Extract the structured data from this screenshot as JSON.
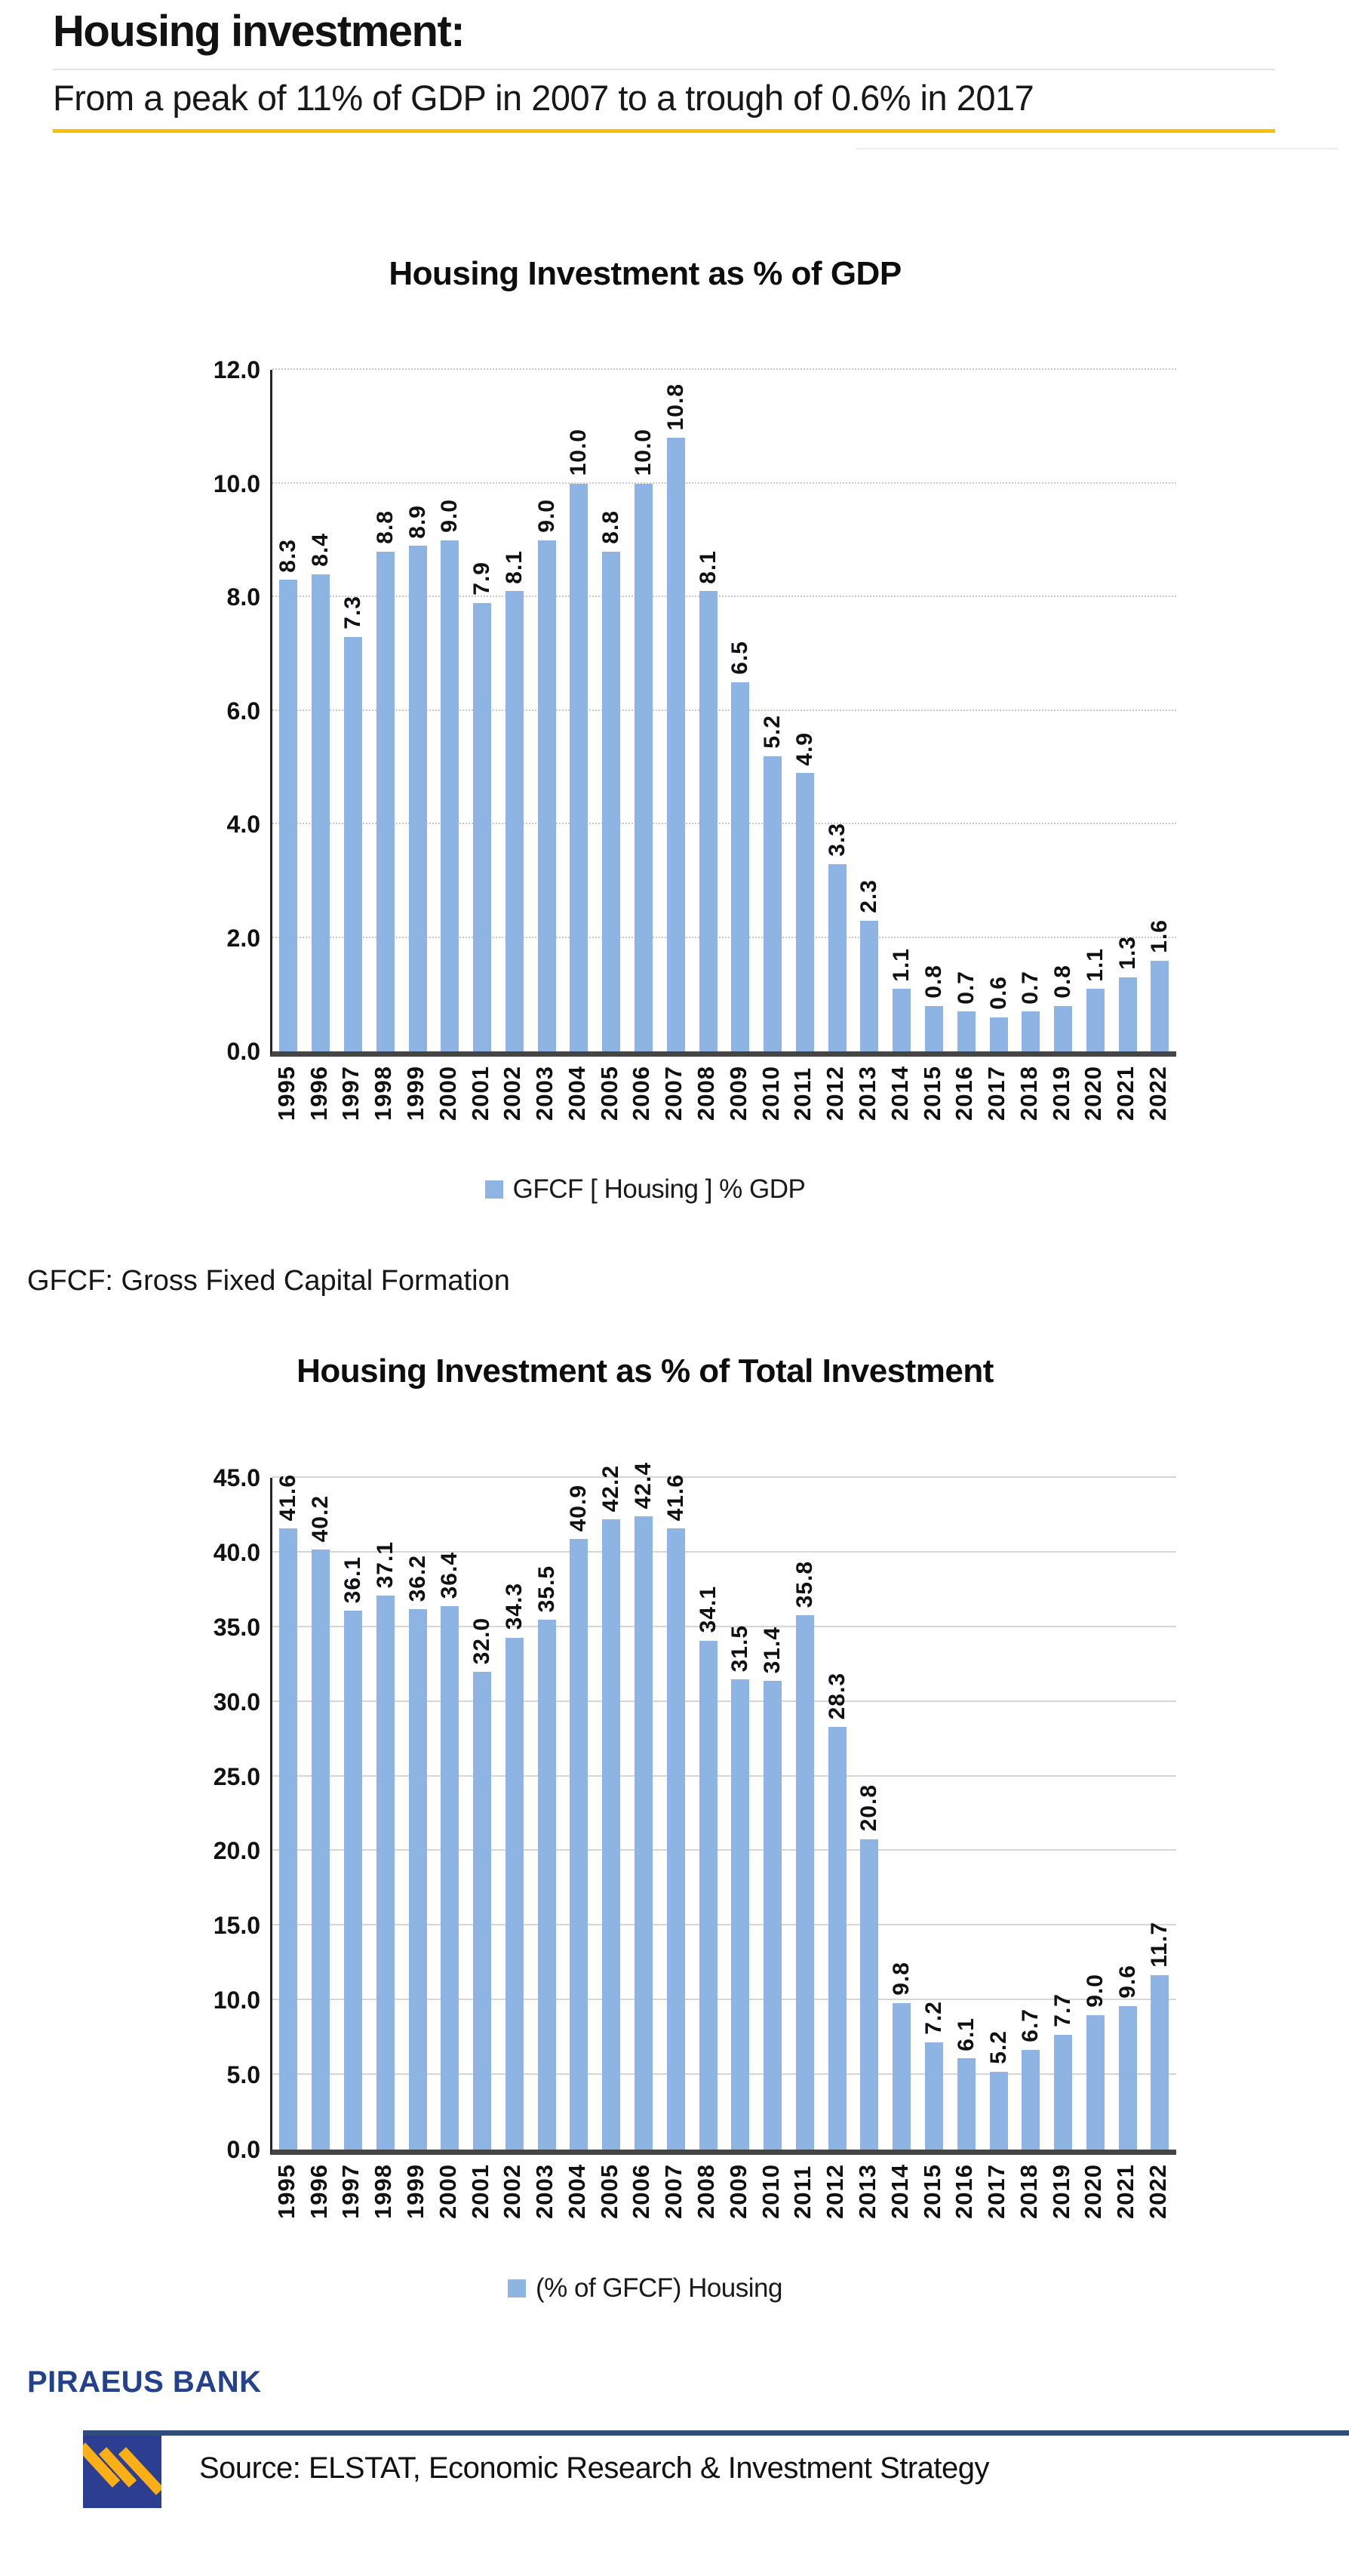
{
  "page": {
    "title": "Housing investment:",
    "subtitle": "From a peak of 11% of GDP in 2007 to a trough of 0.6% in 2017",
    "note": "GFCF: Gross Fixed Capital Formation",
    "brand": "PIRAEUS BANK",
    "source": "Source: ELSTAT, Economic Research & Investment Strategy"
  },
  "colors": {
    "bar": "#8EB4E3",
    "accent_yellow": "#FFC000",
    "navy_text": "#24418E",
    "footer_bar": "#2E4D7B",
    "logo_bg": "#2B3E92",
    "logo_stripe": "#FBAF17",
    "grid": "#D6D6D6",
    "axis": "#454545"
  },
  "chart_data": [
    {
      "type": "bar",
      "title": "Housing Investment as % of GDP",
      "legend": "GFCF [ Housing ] % GDP",
      "legend_position": "bottom",
      "grid": "on",
      "grid_style": "dotted",
      "xlabel": "",
      "ylabel": "",
      "ylim": [
        0,
        12
      ],
      "ytick_labels": [
        "12.0",
        "10.0",
        "8.0",
        "6.0",
        "4.0",
        "2.0",
        "0.0"
      ],
      "categories": [
        "1995",
        "1996",
        "1997",
        "1998",
        "1999",
        "2000",
        "2001",
        "2002",
        "2003",
        "2004",
        "2005",
        "2006",
        "2007",
        "2008",
        "2009",
        "2010",
        "2011",
        "2012",
        "2013",
        "2014",
        "2015",
        "2016",
        "2017",
        "2018",
        "2019",
        "2020",
        "2021",
        "2022"
      ],
      "values": [
        8.3,
        8.4,
        7.3,
        8.8,
        8.9,
        9.0,
        7.9,
        8.1,
        9.0,
        10.0,
        8.8,
        10.0,
        10.8,
        8.1,
        6.5,
        5.2,
        4.9,
        3.3,
        2.3,
        1.1,
        0.8,
        0.7,
        0.6,
        0.7,
        0.8,
        1.1,
        1.3,
        1.6
      ]
    },
    {
      "type": "bar",
      "title": "Housing Investment as % of Total Investment",
      "legend": "(% of GFCF) Housing",
      "legend_position": "bottom",
      "grid": "on",
      "grid_style": "solid",
      "xlabel": "",
      "ylabel": "",
      "ylim": [
        0,
        45
      ],
      "ytick_labels": [
        "45.0",
        "40.0",
        "35.0",
        "30.0",
        "25.0",
        "20.0",
        "15.0",
        "10.0",
        "5.0",
        "0.0"
      ],
      "categories": [
        "1995",
        "1996",
        "1997",
        "1998",
        "1999",
        "2000",
        "2001",
        "2002",
        "2003",
        "2004",
        "2005",
        "2006",
        "2007",
        "2008",
        "2009",
        "2010",
        "2011",
        "2012",
        "2013",
        "2014",
        "2015",
        "2016",
        "2017",
        "2018",
        "2019",
        "2020",
        "2021",
        "2022"
      ],
      "values": [
        41.6,
        40.2,
        36.1,
        37.1,
        36.2,
        36.4,
        32.0,
        34.3,
        35.5,
        40.9,
        42.2,
        42.4,
        41.6,
        34.1,
        31.5,
        31.4,
        35.8,
        28.3,
        20.8,
        9.8,
        7.2,
        6.1,
        5.2,
        6.7,
        7.7,
        9.0,
        9.6,
        11.7
      ]
    }
  ]
}
